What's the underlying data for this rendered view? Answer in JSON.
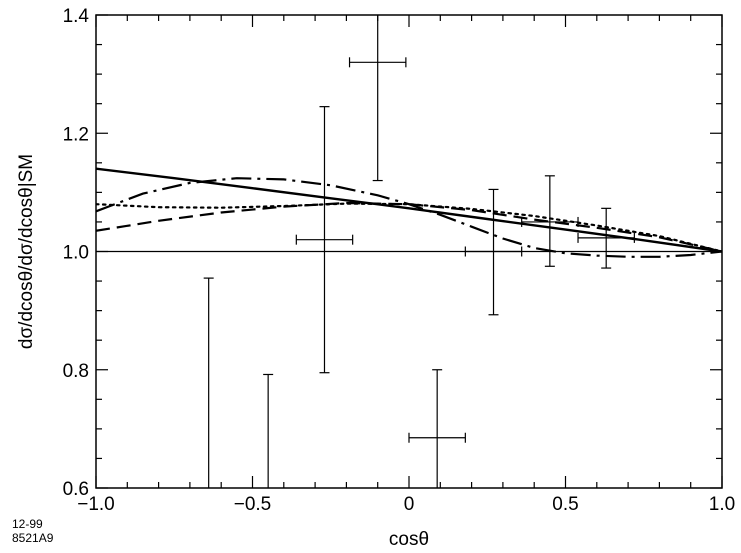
{
  "corner": {
    "line1": "12-99",
    "line2": "8521A9"
  },
  "chart_data": {
    "type": "line",
    "title": "",
    "xlabel": "cosθ",
    "ylabel": "dσ/dcosθ/dσ/dcosθ|SM",
    "xlim": [
      -1.0,
      1.0
    ],
    "ylim": [
      0.6,
      1.4
    ],
    "xticks": [
      -1.0,
      -0.5,
      0,
      0.5,
      1.0
    ],
    "xtick_labels": [
      "−1.0",
      "−0.5",
      "0",
      "0.5",
      "1.0"
    ],
    "yticks": [
      0.6,
      0.8,
      1.0,
      1.2,
      1.4
    ],
    "ytick_labels": [
      "0.6",
      "0.8",
      "1.0",
      "1.2",
      "1.4"
    ],
    "grid": false,
    "reference_line": 1.0,
    "series": [
      {
        "style": "solid",
        "x": [
          -1.0,
          -0.75,
          -0.5,
          -0.25,
          0,
          0.25,
          0.5,
          0.75,
          1.0
        ],
        "y": [
          1.14,
          1.124,
          1.107,
          1.09,
          1.073,
          1.055,
          1.037,
          1.019,
          1.0
        ]
      },
      {
        "style": "dashed",
        "x": [
          -1.0,
          -0.8,
          -0.6,
          -0.4,
          -0.2,
          0,
          0.2,
          0.4,
          0.6,
          0.8,
          1.0
        ],
        "y": [
          1.035,
          1.052,
          1.066,
          1.076,
          1.082,
          1.08,
          1.07,
          1.054,
          1.04,
          1.024,
          1.0
        ]
      },
      {
        "style": "dotted",
        "x": [
          -1.0,
          -0.8,
          -0.6,
          -0.4,
          -0.2,
          0,
          0.2,
          0.4,
          0.6,
          0.8,
          1.0
        ],
        "y": [
          1.08,
          1.075,
          1.074,
          1.077,
          1.081,
          1.08,
          1.072,
          1.06,
          1.044,
          1.026,
          1.0
        ]
      },
      {
        "style": "dash-dot",
        "x": [
          -1.0,
          -0.85,
          -0.7,
          -0.55,
          -0.4,
          -0.25,
          -0.1,
          0,
          0.1,
          0.2,
          0.3,
          0.4,
          0.5,
          0.6,
          0.7,
          0.8,
          0.9,
          1.0
        ],
        "y": [
          1.068,
          1.098,
          1.116,
          1.124,
          1.122,
          1.112,
          1.095,
          1.08,
          1.062,
          1.042,
          1.022,
          1.006,
          0.997,
          0.993,
          0.991,
          0.991,
          0.994,
          1.0
        ]
      }
    ],
    "error_points": [
      {
        "x": -0.1,
        "xerr": 0.09,
        "y": 1.32,
        "ylow": 1.12,
        "yhigh": 1.4
      },
      {
        "x": -0.27,
        "xerr": 0.09,
        "y": 1.02,
        "ylow": 0.795,
        "yhigh": 1.245
      },
      {
        "x": 0.09,
        "xerr": 0.09,
        "y": 0.685,
        "ylow": 0.6,
        "yhigh": 0.8
      },
      {
        "x": 0.27,
        "xerr": 0.09,
        "y": 1.0,
        "ylow": 0.893,
        "yhigh": 1.105
      },
      {
        "x": 0.45,
        "xerr": 0.09,
        "y": 1.05,
        "ylow": 0.975,
        "yhigh": 1.128
      },
      {
        "x": 0.63,
        "xerr": 0.09,
        "y": 1.023,
        "ylow": 0.972,
        "yhigh": 1.073
      },
      {
        "x": -0.64,
        "xerr": 0,
        "y": 0.6,
        "ylow": 0.6,
        "yhigh": 0.955
      },
      {
        "x": -0.45,
        "xerr": 0,
        "y": 0.6,
        "ylow": 0.6,
        "yhigh": 0.792
      }
    ]
  }
}
